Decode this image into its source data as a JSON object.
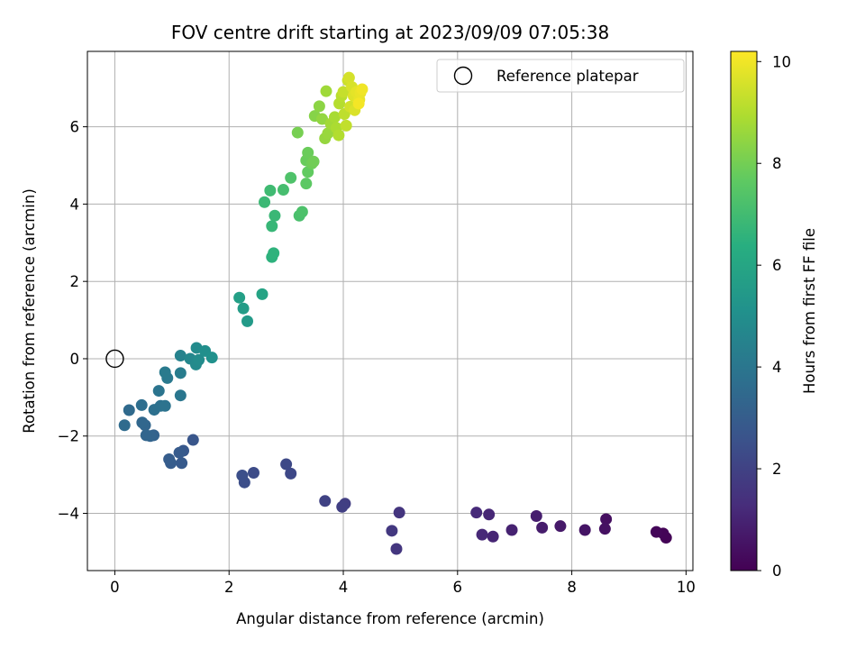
{
  "chart_data": {
    "type": "scatter",
    "title": "FOV centre drift starting at 2023/09/09 07:05:38",
    "xlabel": "Angular distance from reference (arcmin)",
    "ylabel": "Rotation from reference (arcmin)",
    "xlim": [
      -0.48,
      10.12
    ],
    "ylim": [
      -5.48,
      7.95
    ],
    "xticks": [
      "0",
      "2",
      "4",
      "6",
      "8",
      "10"
    ],
    "xtick_values": [
      0,
      2,
      4,
      6,
      8,
      10
    ],
    "yticks": [
      "−4",
      "−2",
      "0",
      "2",
      "4",
      "6"
    ],
    "ytick_values": [
      -4,
      -2,
      0,
      2,
      4,
      6
    ],
    "grid": true,
    "legend_position": "top-right",
    "reference": {
      "name": "Reference platepar",
      "x": 0,
      "y": 0
    },
    "colorbar": {
      "label": "Hours from first FF file",
      "range": [
        0,
        10.2
      ],
      "ticks": [
        "0",
        "2",
        "4",
        "6",
        "8",
        "10"
      ],
      "tick_values": [
        0,
        2,
        4,
        6,
        8,
        10
      ]
    },
    "points": [
      [
        9.65,
        -4.63,
        0.05
      ],
      [
        9.6,
        -4.52,
        0.1
      ],
      [
        9.48,
        -4.48,
        0.15
      ],
      [
        8.6,
        -4.15,
        0.4
      ],
      [
        8.58,
        -4.4,
        0.45
      ],
      [
        8.23,
        -4.43,
        0.55
      ],
      [
        7.8,
        -4.33,
        0.7
      ],
      [
        7.48,
        -4.37,
        0.8
      ],
      [
        7.38,
        -4.07,
        0.85
      ],
      [
        6.95,
        -4.43,
        0.95
      ],
      [
        6.62,
        -4.6,
        1.05
      ],
      [
        6.55,
        -4.03,
        1.1
      ],
      [
        6.43,
        -4.55,
        1.15
      ],
      [
        6.33,
        -3.98,
        1.2
      ],
      [
        4.98,
        -3.98,
        1.55
      ],
      [
        4.93,
        -4.92,
        1.6
      ],
      [
        4.85,
        -4.45,
        1.65
      ],
      [
        4.03,
        -3.75,
        1.85
      ],
      [
        3.98,
        -3.83,
        1.9
      ],
      [
        3.68,
        -3.68,
        2.0
      ],
      [
        3.08,
        -2.97,
        2.2
      ],
      [
        3.0,
        -2.73,
        2.25
      ],
      [
        2.43,
        -2.95,
        2.35
      ],
      [
        2.27,
        -3.2,
        2.4
      ],
      [
        2.23,
        -3.02,
        2.45
      ],
      [
        1.37,
        -2.1,
        2.7
      ],
      [
        1.2,
        -2.38,
        2.8
      ],
      [
        1.17,
        -2.7,
        2.85
      ],
      [
        1.13,
        -2.43,
        2.9
      ],
      [
        0.98,
        -2.7,
        2.95
      ],
      [
        0.95,
        -2.6,
        3.0
      ],
      [
        0.68,
        -1.98,
        3.2
      ],
      [
        0.62,
        -2.0,
        3.25
      ],
      [
        0.55,
        -1.98,
        3.3
      ],
      [
        0.53,
        -1.72,
        3.35
      ],
      [
        0.48,
        -1.65,
        3.4
      ],
      [
        0.25,
        -1.33,
        3.5
      ],
      [
        0.17,
        -1.72,
        3.55
      ],
      [
        0.47,
        -1.2,
        3.65
      ],
      [
        0.69,
        -1.32,
        3.75
      ],
      [
        0.8,
        -1.22,
        3.8
      ],
      [
        0.88,
        -1.22,
        3.85
      ],
      [
        0.77,
        -0.83,
        3.9
      ],
      [
        1.15,
        -0.95,
        4.0
      ],
      [
        0.92,
        -0.5,
        4.1
      ],
      [
        0.88,
        -0.35,
        4.15
      ],
      [
        1.15,
        -0.37,
        4.25
      ],
      [
        1.15,
        0.08,
        4.5
      ],
      [
        1.32,
        0.0,
        4.7
      ],
      [
        1.42,
        -0.15,
        4.8
      ],
      [
        1.43,
        0.28,
        4.85
      ],
      [
        1.47,
        -0.03,
        4.9
      ],
      [
        1.58,
        0.2,
        5.0
      ],
      [
        1.7,
        0.03,
        5.1
      ],
      [
        2.32,
        0.97,
        5.5
      ],
      [
        2.25,
        1.3,
        5.6
      ],
      [
        2.18,
        1.58,
        5.7
      ],
      [
        2.58,
        1.67,
        5.9
      ],
      [
        2.75,
        2.63,
        6.5
      ],
      [
        2.78,
        2.73,
        6.55
      ],
      [
        2.75,
        3.43,
        6.75
      ],
      [
        2.8,
        3.7,
        6.8
      ],
      [
        2.62,
        4.05,
        6.85
      ],
      [
        2.72,
        4.35,
        6.95
      ],
      [
        2.95,
        4.37,
        7.1
      ],
      [
        3.08,
        4.68,
        7.3
      ],
      [
        3.23,
        3.7,
        7.2
      ],
      [
        3.28,
        3.8,
        7.25
      ],
      [
        3.35,
        4.53,
        7.6
      ],
      [
        3.38,
        4.83,
        7.7
      ],
      [
        3.35,
        5.13,
        7.8
      ],
      [
        3.38,
        5.33,
        7.85
      ],
      [
        3.45,
        5.05,
        7.9
      ],
      [
        3.48,
        5.1,
        7.95
      ],
      [
        3.2,
        5.85,
        8.05
      ],
      [
        3.5,
        6.28,
        8.3
      ],
      [
        3.58,
        6.53,
        8.4
      ],
      [
        3.63,
        6.2,
        8.5
      ],
      [
        3.68,
        5.7,
        8.55
      ],
      [
        3.73,
        5.83,
        8.6
      ],
      [
        3.7,
        6.92,
        8.7
      ],
      [
        3.78,
        6.08,
        8.75
      ],
      [
        3.85,
        6.25,
        8.85
      ],
      [
        3.88,
        5.97,
        8.9
      ],
      [
        3.92,
        5.78,
        9.0
      ],
      [
        3.93,
        6.6,
        9.05
      ],
      [
        3.97,
        6.8,
        9.1
      ],
      [
        4.02,
        6.33,
        9.2
      ],
      [
        4.05,
        6.03,
        9.25
      ],
      [
        4.0,
        6.9,
        9.3
      ],
      [
        4.08,
        7.2,
        9.4
      ],
      [
        4.12,
        6.52,
        9.5
      ],
      [
        4.1,
        7.27,
        9.55
      ],
      [
        4.15,
        7.03,
        9.6
      ],
      [
        4.2,
        6.43,
        9.65
      ],
      [
        4.18,
        6.8,
        9.7
      ],
      [
        4.23,
        6.9,
        9.8
      ],
      [
        4.28,
        6.7,
        9.85
      ],
      [
        4.3,
        6.88,
        9.9
      ],
      [
        4.33,
        6.97,
        10.0
      ],
      [
        4.27,
        6.6,
        10.05
      ]
    ]
  }
}
